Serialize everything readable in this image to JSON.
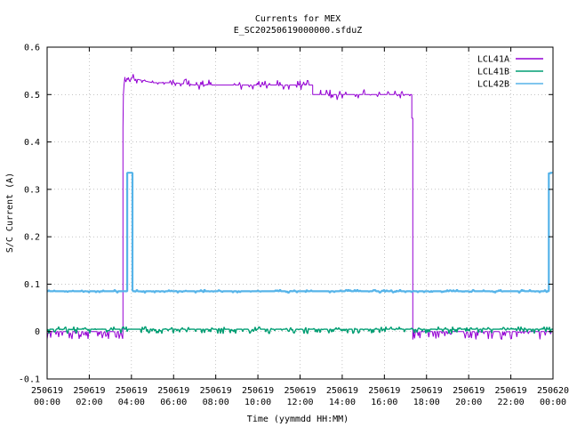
{
  "chart_data": {
    "type": "line",
    "title": "Currents for MEX",
    "subtitle": "E_SC20250619000000.sfduZ",
    "xlabel": "Time (yymmdd HH:MM)",
    "ylabel": "S/C Current (A)",
    "x_unit": "hours since 250619 00:00",
    "xlim": [
      0,
      24
    ],
    "ylim": [
      -0.1,
      0.6
    ],
    "grid": true,
    "legend_position": "top-right",
    "y_ticks": [
      -0.1,
      0,
      0.1,
      0.2,
      0.3,
      0.4,
      0.5,
      0.6
    ],
    "y_tick_labels": [
      "-0.1",
      "0",
      "0.1",
      "0.2",
      "0.3",
      "0.4",
      "0.5",
      "0.6"
    ],
    "x_ticks": [
      0,
      2,
      4,
      6,
      8,
      10,
      12,
      14,
      16,
      18,
      20,
      22,
      24
    ],
    "x_tick_labels": [
      [
        "250619",
        "00:00"
      ],
      [
        "250619",
        "02:00"
      ],
      [
        "250619",
        "04:00"
      ],
      [
        "250619",
        "06:00"
      ],
      [
        "250619",
        "08:00"
      ],
      [
        "250619",
        "10:00"
      ],
      [
        "250619",
        "12:00"
      ],
      [
        "250619",
        "14:00"
      ],
      [
        "250619",
        "16:00"
      ],
      [
        "250619",
        "18:00"
      ],
      [
        "250619",
        "20:00"
      ],
      [
        "250619",
        "22:00"
      ],
      [
        "250620",
        "00:00"
      ]
    ],
    "series": [
      {
        "name": "LCL41A",
        "color": "#9400d3",
        "x": [
          0,
          3.6,
          3.6,
          3.62,
          3.65,
          3.7,
          3.85,
          4.0,
          4.5,
          5.0,
          6.0,
          7.0,
          8.0,
          9.0,
          10.0,
          11.0,
          12.0,
          12.3,
          12.6,
          12.6,
          13.0,
          14.0,
          15.0,
          16.0,
          17.0,
          17.2,
          17.3,
          17.3,
          17.35,
          17.35,
          24
        ],
        "y": [
          0,
          0,
          0.43,
          0.5,
          0.52,
          0.54,
          0.53,
          0.535,
          0.53,
          0.525,
          0.525,
          0.52,
          0.52,
          0.52,
          0.52,
          0.52,
          0.52,
          0.52,
          0.52,
          0.5,
          0.5,
          0.5,
          0.5,
          0.5,
          0.5,
          0.5,
          0.5,
          0.45,
          0.45,
          0,
          0
        ]
      },
      {
        "name": "LCL41B",
        "color": "#009e73",
        "x": [
          0,
          24
        ],
        "y": [
          0.005,
          0.005
        ]
      },
      {
        "name": "LCL42B",
        "color": "#56b4e9",
        "x": [
          0,
          3.8,
          3.8,
          4.05,
          4.05,
          23.8,
          23.8,
          24
        ],
        "y": [
          0.085,
          0.085,
          0.335,
          0.335,
          0.085,
          0.085,
          0.335,
          0.335
        ]
      }
    ]
  }
}
